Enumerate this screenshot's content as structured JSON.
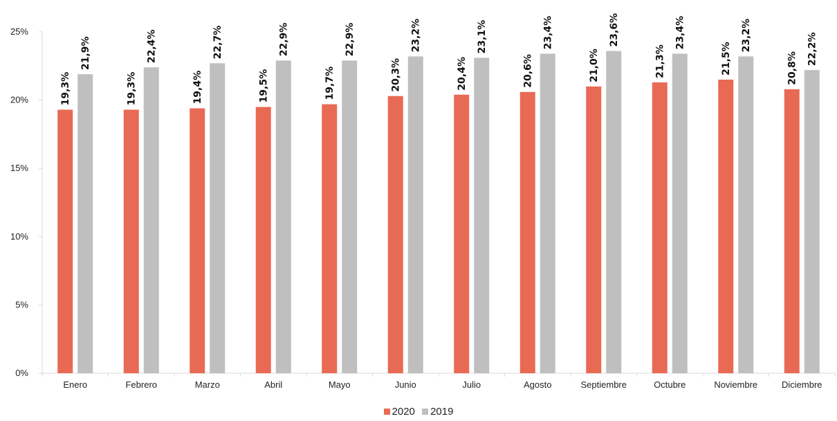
{
  "chart_data": {
    "type": "bar",
    "title": "",
    "xlabel": "",
    "ylabel": "",
    "ylim": [
      0,
      25
    ],
    "yticks": [
      "0%",
      "5%",
      "10%",
      "15%",
      "20%",
      "25%"
    ],
    "ytick_values": [
      0,
      5,
      10,
      15,
      20,
      25
    ],
    "grid": false,
    "legend_position": "bottom-center",
    "categories": [
      "Enero",
      "Febrero",
      "Marzo",
      "Abril",
      "Mayo",
      "Junio",
      "Julio",
      "Agosto",
      "Septiembre",
      "Octubre",
      "Noviembre",
      "Diciembre"
    ],
    "series": [
      {
        "name": "2020",
        "color": "#E96A54",
        "values": [
          19.3,
          19.3,
          19.4,
          19.5,
          19.7,
          20.3,
          20.4,
          20.6,
          21.0,
          21.3,
          21.5,
          20.8
        ],
        "labels": [
          "19,3%",
          "19,3%",
          "19,4%",
          "19,5%",
          "19,7%",
          "20,3%",
          "20,4%",
          "20,6%",
          "21,0%",
          "21,3%",
          "21,5%",
          "20,8%"
        ]
      },
      {
        "name": "2019",
        "color": "#BFBFBF",
        "values": [
          21.9,
          22.4,
          22.7,
          22.9,
          22.9,
          23.2,
          23.1,
          23.4,
          23.6,
          23.4,
          23.2,
          22.2
        ],
        "labels": [
          "21,9%",
          "22,4%",
          "22,7%",
          "22,9%",
          "22,9%",
          "23,2%",
          "23,1%",
          "23,4%",
          "23,6%",
          "23,4%",
          "23,2%",
          "22,2%"
        ]
      }
    ]
  }
}
